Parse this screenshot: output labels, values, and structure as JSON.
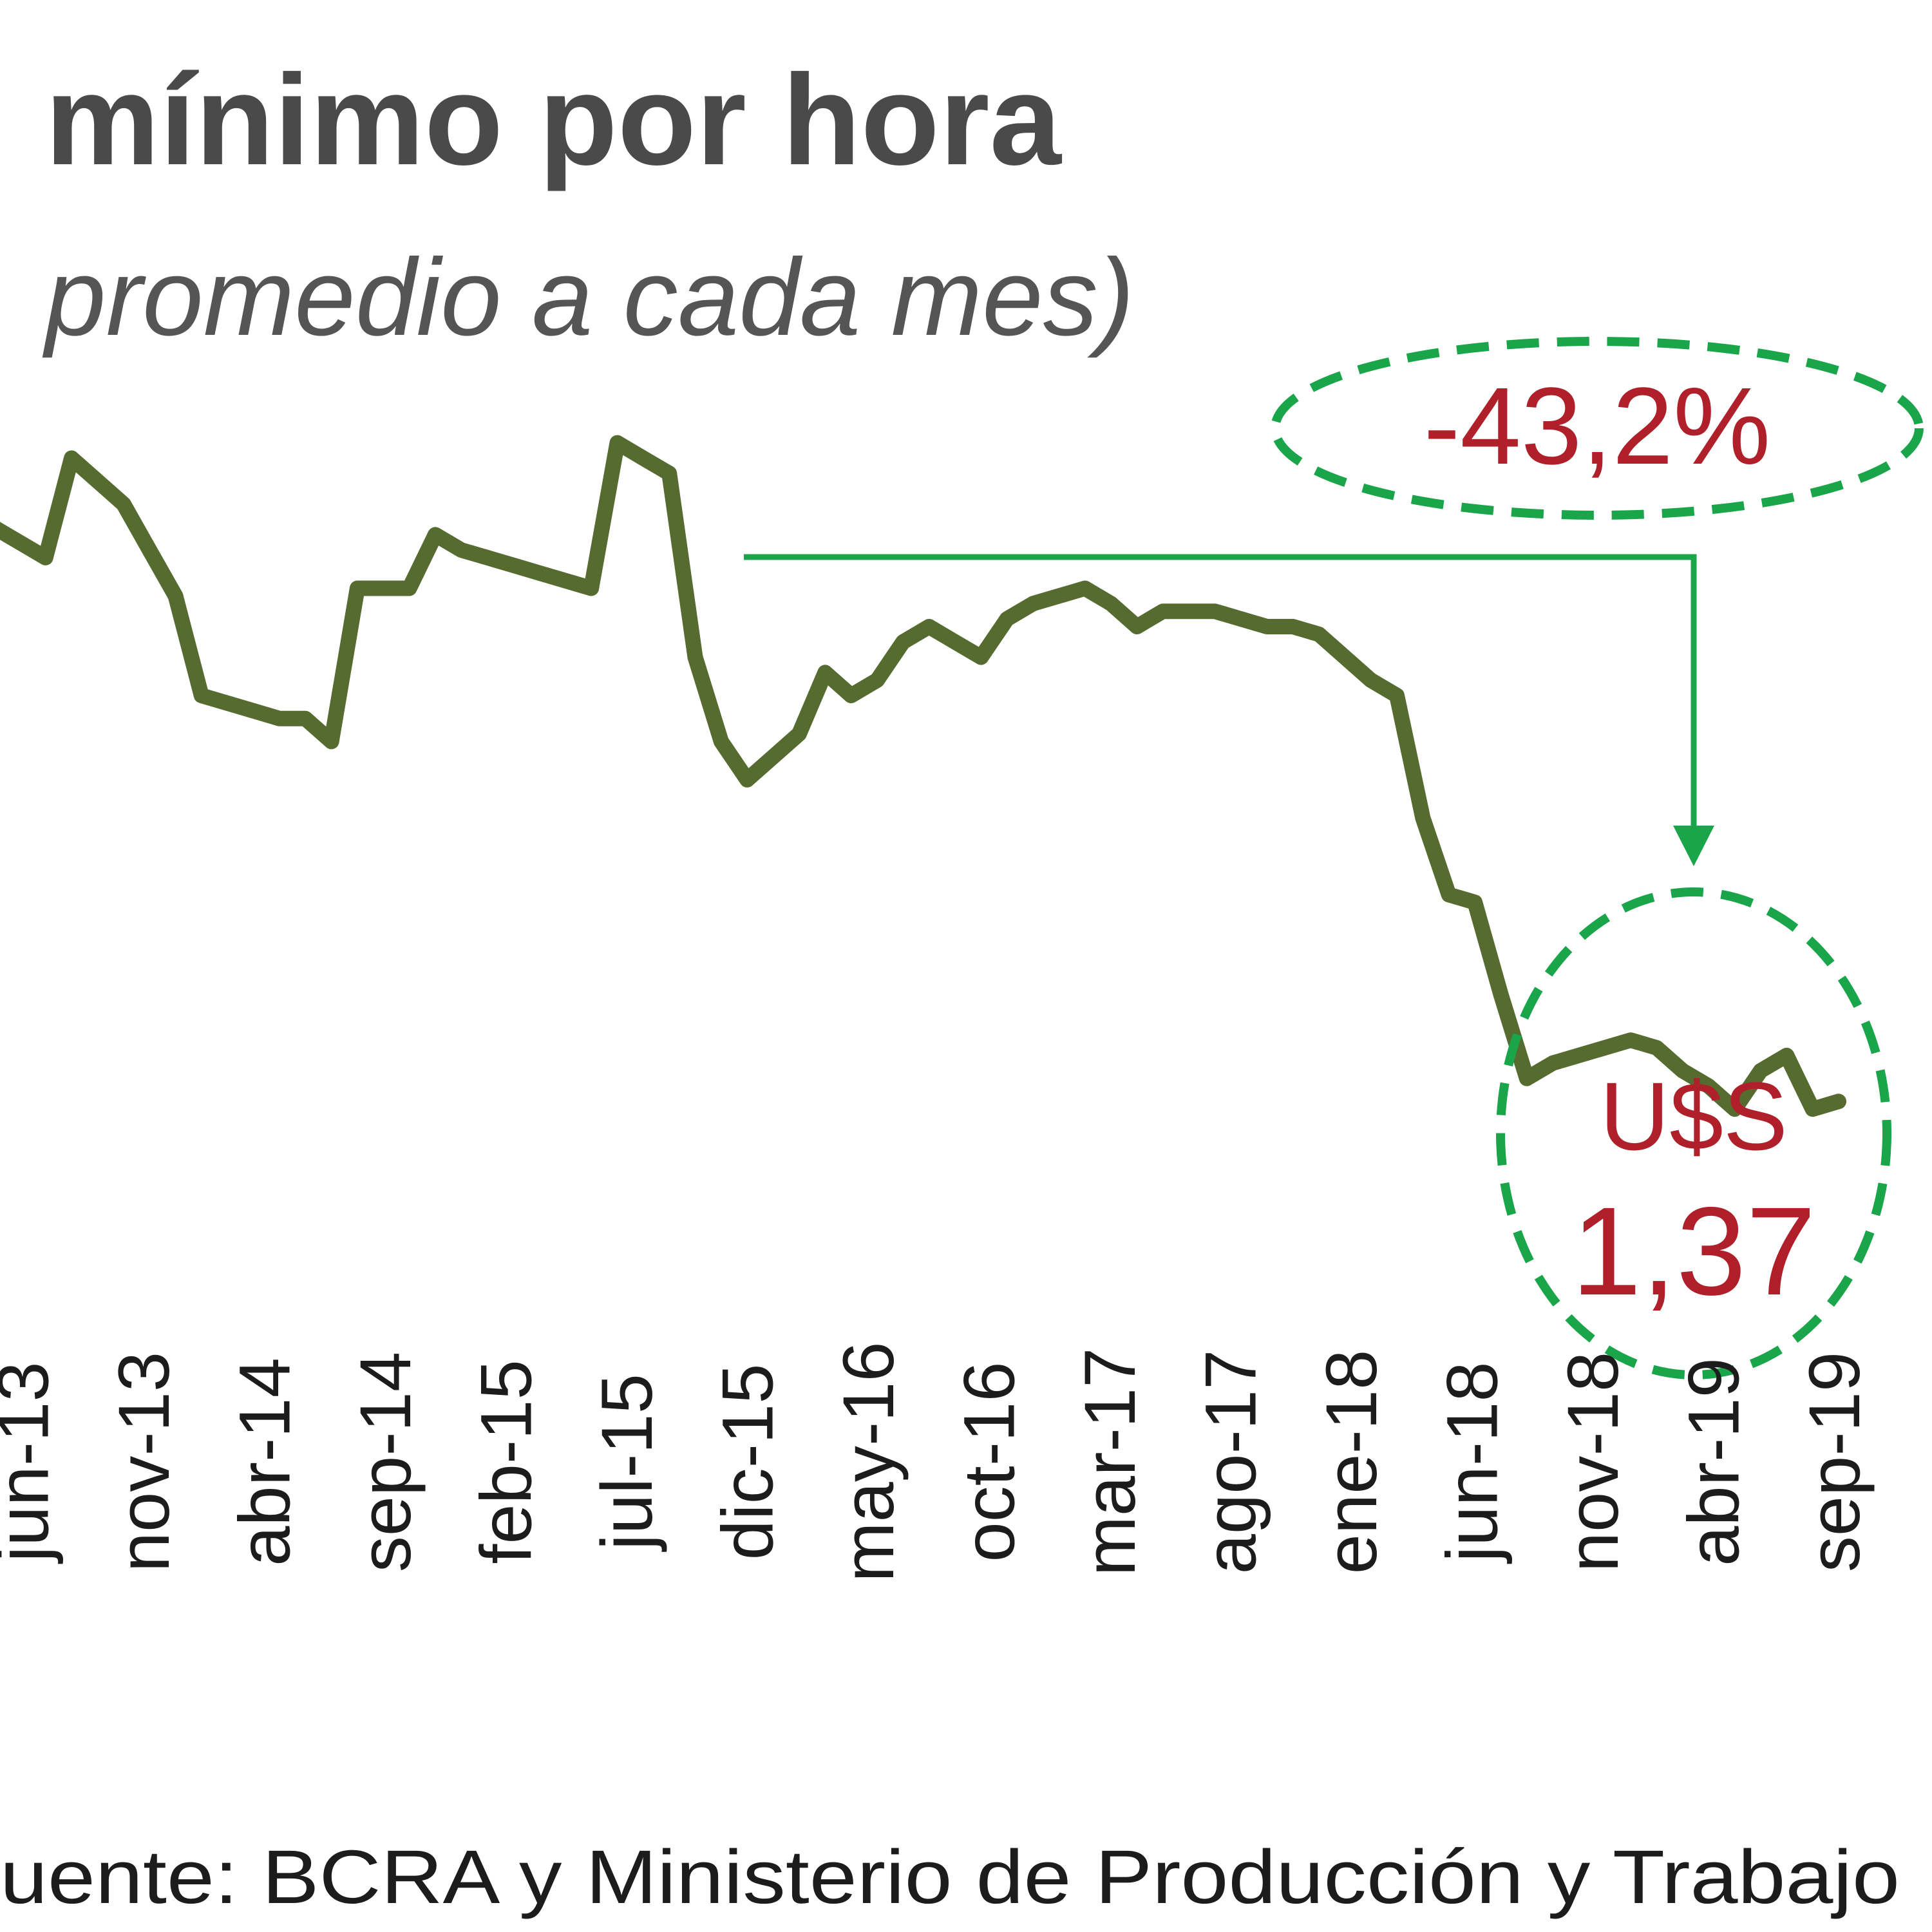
{
  "colors": {
    "line": "#556b2f",
    "accent": "#1aa54a",
    "annotation": "#b0202a",
    "title": "#4a4a4a",
    "subtitle": "#555555",
    "text": "#1c1c1c"
  },
  "title": "mínimo por hora",
  "subtitle": "promedio  a cada mes)",
  "source": "uente: BCRA y Ministerio de Producción y Trabajo",
  "chart_data": {
    "type": "line",
    "title": "mínimo por hora",
    "subtitle": "promedio  a cada mes)",
    "tick_labels": [
      "jun-13",
      "nov-13",
      "abr-14",
      "sep-14",
      "feb-15",
      "jul-15",
      "dic-15",
      "may-16",
      "oct-16",
      "mar-17",
      "ago-17",
      "ene-18",
      "jun-18",
      "nov-18",
      "abr-19",
      "sep-19"
    ],
    "ylim": [
      1.0,
      2.85
    ],
    "grid": false,
    "legend": "none",
    "series": [
      {
        "values": [
          2.33,
          2.31,
          2.29,
          2.42,
          2.39,
          2.36,
          2.3,
          2.24,
          2.11,
          2.1,
          2.09,
          2.08,
          2.08,
          2.05,
          2.25,
          2.25,
          2.25,
          2.32,
          2.3,
          2.29,
          2.28,
          2.27,
          2.26,
          2.25,
          2.44,
          2.42,
          2.4,
          2.16,
          2.05,
          2.0,
          2.03,
          2.06,
          2.14,
          2.11,
          2.13,
          2.18,
          2.2,
          2.18,
          2.16,
          2.21,
          2.23,
          2.24,
          2.25,
          2.23,
          2.2,
          2.22,
          2.22,
          2.22,
          2.21,
          2.2,
          2.2,
          2.19,
          2.16,
          2.13,
          2.11,
          1.95,
          1.85,
          1.84,
          1.72,
          1.61,
          1.63,
          1.64,
          1.65,
          1.66,
          1.65,
          1.62,
          1.6,
          1.57,
          1.62,
          1.64,
          1.57,
          1.58
        ]
      }
    ],
    "annotations": [
      {
        "label": "-43,2%"
      },
      {
        "label": "U$S",
        "value": "1,37"
      }
    ]
  }
}
